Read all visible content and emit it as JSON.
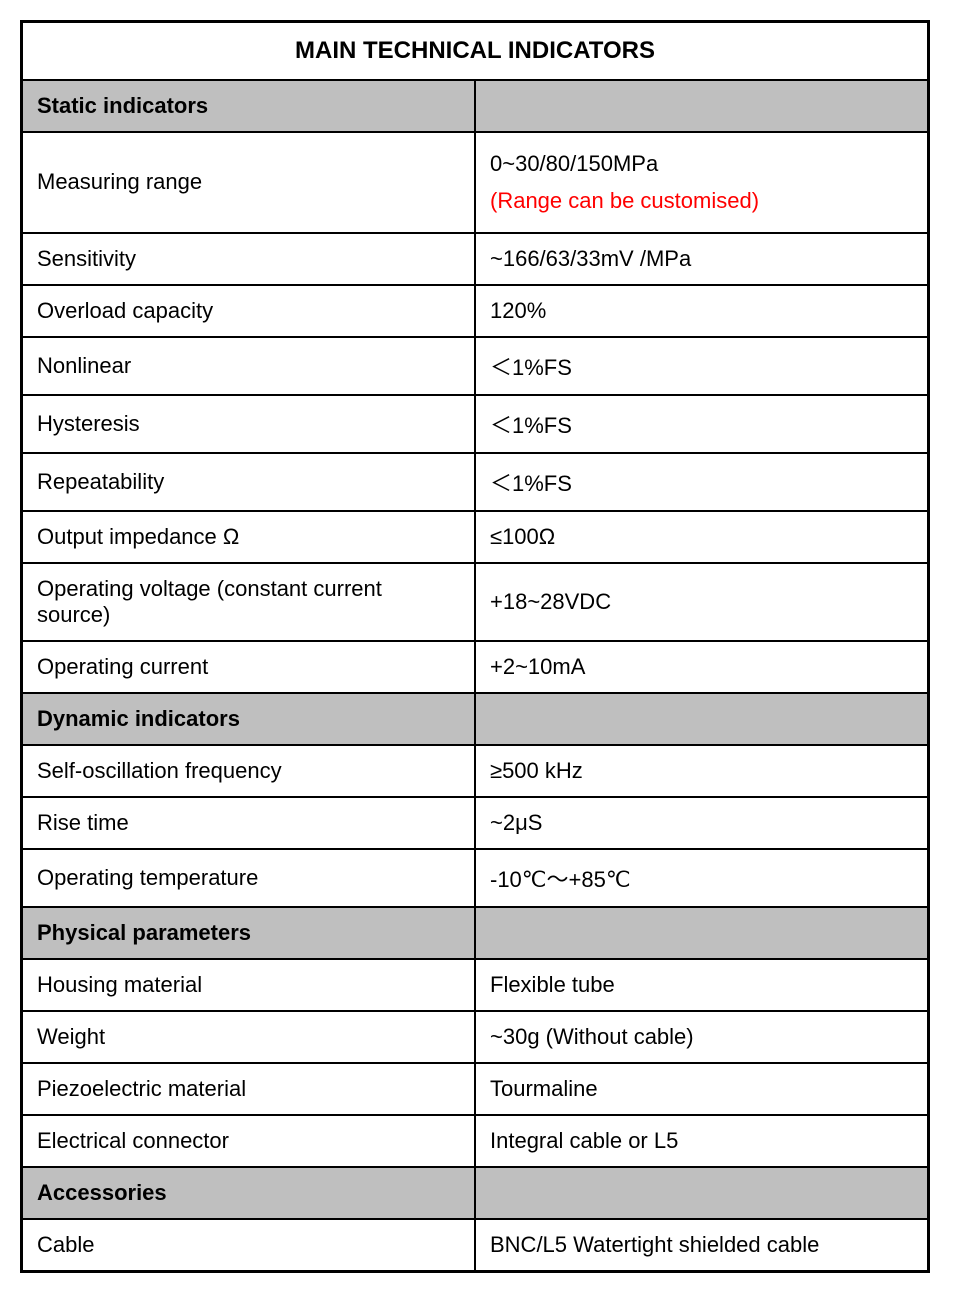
{
  "table": {
    "title": "MAIN TECHNICAL INDICATORS",
    "col_widths": {
      "label_pct": 50,
      "value_pct": 50
    },
    "colors": {
      "border": "#000000",
      "section_bg": "#bfbfbf",
      "background": "#ffffff",
      "text": "#000000",
      "note_red": "#ff0000"
    },
    "font": {
      "family": "Arial",
      "title_size": 24,
      "cell_size": 22,
      "title_weight": 700,
      "section_weight": 700
    },
    "sections": [
      {
        "header": "Static indicators",
        "rows": [
          {
            "label": "Measuring range",
            "value": "0~30/80/150MPa",
            "note": "(Range can be customised)"
          },
          {
            "label": "Sensitivity",
            "value": "~166/63/33mV /MPa"
          },
          {
            "label": "Overload capacity",
            "value": "120%"
          },
          {
            "label": "Nonlinear",
            "value": "＜1%FS"
          },
          {
            "label": "Hysteresis",
            "value": "＜1%FS"
          },
          {
            "label": "Repeatability",
            "value": "＜1%FS"
          },
          {
            "label": "Output impedance Ω",
            "value": "≤100Ω"
          },
          {
            "label": "Operating voltage (constant current source)",
            "value": "+18~28VDC"
          },
          {
            "label": "Operating current",
            "value": "+2~10mA"
          }
        ]
      },
      {
        "header": "Dynamic indicators",
        "rows": [
          {
            "label": "Self-oscillation frequency",
            "value": "≥500 kHz"
          },
          {
            "label": "Rise time",
            "value": "~2μS"
          },
          {
            "label": "Operating temperature",
            "value": "-10℃～+85℃"
          }
        ]
      },
      {
        "header": "Physical parameters",
        "rows": [
          {
            "label": "Housing material",
            "value": "Flexible tube"
          },
          {
            "label": "Weight",
            "value": "~30g  (Without cable)"
          },
          {
            "label": "Piezoelectric material",
            "value": "Tourmaline"
          },
          {
            "label": "Electrical connector",
            "value": "Integral cable or L5"
          }
        ]
      },
      {
        "header": "Accessories",
        "rows": [
          {
            "label": "Cable",
            "value": "BNC/L5 Watertight shielded cable"
          }
        ]
      }
    ]
  }
}
